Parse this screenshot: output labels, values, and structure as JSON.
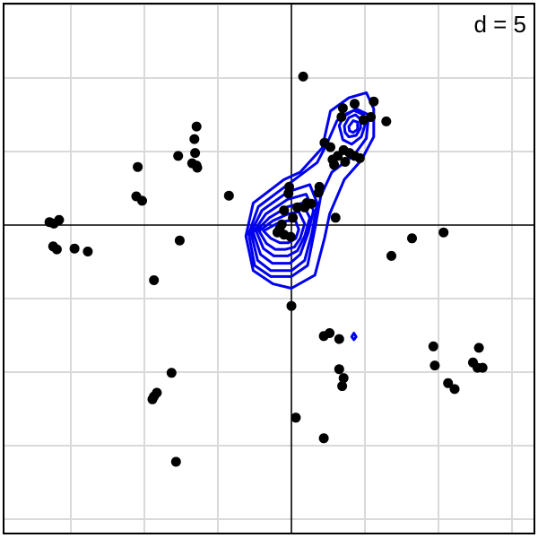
{
  "chart_data": {
    "type": "scatter",
    "title": "",
    "annotation": "d = 5",
    "xlabel": "",
    "ylabel": "",
    "xlim": [
      -4,
      3
    ],
    "ylim": [
      -4,
      3
    ],
    "grid": true,
    "grid_step": 1,
    "axes_through_origin": true,
    "legend": "none",
    "colors": {
      "points": "#000000",
      "contours": "#0000ee",
      "grid": "#d9d9d9"
    },
    "points": [
      {
        "x": 0.16,
        "y": 2.02
      },
      {
        "x": 0.86,
        "y": 1.65
      },
      {
        "x": 1.12,
        "y": 1.68
      },
      {
        "x": 0.7,
        "y": 1.59
      },
      {
        "x": 0.68,
        "y": 1.47
      },
      {
        "x": 0.98,
        "y": 1.43
      },
      {
        "x": 1.29,
        "y": 1.41
      },
      {
        "x": 1.08,
        "y": 1.47
      },
      {
        "x": 0.45,
        "y": 1.12
      },
      {
        "x": 0.53,
        "y": 1.06
      },
      {
        "x": 0.71,
        "y": 1.02
      },
      {
        "x": 0.79,
        "y": 0.98
      },
      {
        "x": 0.63,
        "y": 0.94
      },
      {
        "x": 0.86,
        "y": 0.94
      },
      {
        "x": 0.56,
        "y": 0.89
      },
      {
        "x": 0.73,
        "y": 0.86
      },
      {
        "x": 0.58,
        "y": 0.82
      },
      {
        "x": 0.93,
        "y": 0.91
      },
      {
        "x": 0.38,
        "y": 0.52
      },
      {
        "x": 0.37,
        "y": 0.44
      },
      {
        "x": -0.03,
        "y": 0.52
      },
      {
        "x": -0.04,
        "y": 0.43
      },
      {
        "x": 0.21,
        "y": 0.3
      },
      {
        "x": 0.27,
        "y": 0.29
      },
      {
        "x": 0.18,
        "y": 0.24
      },
      {
        "x": -0.1,
        "y": 0.2
      },
      {
        "x": 0.08,
        "y": 0.24
      },
      {
        "x": 0.02,
        "y": 0.1
      },
      {
        "x": -0.13,
        "y": 0.01
      },
      {
        "x": -0.16,
        "y": -0.05
      },
      {
        "x": -0.1,
        "y": -0.13
      },
      {
        "x": -0.01,
        "y": -0.16
      },
      {
        "x": -0.19,
        "y": -0.1
      },
      {
        "x": 0.6,
        "y": 0.1
      },
      {
        "x": -1.29,
        "y": 1.34
      },
      {
        "x": -1.32,
        "y": 1.17
      },
      {
        "x": -1.31,
        "y": 0.98
      },
      {
        "x": -2.09,
        "y": 0.79
      },
      {
        "x": -2.11,
        "y": 0.39
      },
      {
        "x": -2.03,
        "y": 0.33
      },
      {
        "x": -1.54,
        "y": 0.94
      },
      {
        "x": -1.35,
        "y": 0.84
      },
      {
        "x": -1.29,
        "y": 0.81
      },
      {
        "x": -1.28,
        "y": 0.78
      },
      {
        "x": -0.85,
        "y": 0.4
      },
      {
        "x": -3.29,
        "y": 0.04
      },
      {
        "x": -3.23,
        "y": 0.02
      },
      {
        "x": -3.16,
        "y": 0.07
      },
      {
        "x": -3.24,
        "y": -0.29
      },
      {
        "x": -3.19,
        "y": -0.33
      },
      {
        "x": -2.95,
        "y": -0.32
      },
      {
        "x": -2.77,
        "y": -0.36
      },
      {
        "x": -1.52,
        "y": -0.21
      },
      {
        "x": -1.87,
        "y": -0.75
      },
      {
        "x": 1.36,
        "y": -0.42
      },
      {
        "x": 1.64,
        "y": -0.18
      },
      {
        "x": 2.07,
        "y": -0.1
      },
      {
        "x": 0.0,
        "y": -1.1
      },
      {
        "x": 0.44,
        "y": -1.51
      },
      {
        "x": 0.52,
        "y": -1.47
      },
      {
        "x": 0.65,
        "y": -1.55
      },
      {
        "x": 1.93,
        "y": -1.65
      },
      {
        "x": 2.55,
        "y": -1.67
      },
      {
        "x": 1.95,
        "y": -1.91
      },
      {
        "x": 2.47,
        "y": -1.87
      },
      {
        "x": 2.6,
        "y": -1.94
      },
      {
        "x": 2.53,
        "y": -1.94
      },
      {
        "x": 0.65,
        "y": -1.96
      },
      {
        "x": 0.71,
        "y": -2.08
      },
      {
        "x": 0.69,
        "y": -2.19
      },
      {
        "x": 2.13,
        "y": -2.15
      },
      {
        "x": 2.22,
        "y": -2.23
      },
      {
        "x": -1.63,
        "y": -2.01
      },
      {
        "x": -1.87,
        "y": -2.33
      },
      {
        "x": -1.83,
        "y": -2.28
      },
      {
        "x": -1.89,
        "y": -2.37
      },
      {
        "x": 0.06,
        "y": -2.62
      },
      {
        "x": 0.44,
        "y": -2.9
      },
      {
        "x": -1.57,
        "y": -3.22
      }
    ],
    "contours": [
      [
        [
          -0.62,
          -0.15
        ],
        [
          -0.52,
          0.3
        ],
        [
          -0.1,
          0.62
        ],
        [
          0.12,
          0.72
        ],
        [
          0.42,
          1.05
        ],
        [
          0.53,
          1.55
        ],
        [
          0.78,
          1.73
        ],
        [
          1.02,
          1.8
        ],
        [
          1.12,
          1.58
        ],
        [
          1.12,
          1.2
        ],
        [
          0.95,
          0.88
        ],
        [
          0.72,
          0.62
        ],
        [
          0.52,
          0.15
        ],
        [
          0.45,
          -0.18
        ],
        [
          0.32,
          -0.68
        ],
        [
          0.0,
          -0.86
        ],
        [
          -0.25,
          -0.8
        ],
        [
          -0.52,
          -0.62
        ]
      ],
      [
        [
          -0.58,
          -0.12
        ],
        [
          -0.45,
          0.25
        ],
        [
          -0.05,
          0.55
        ],
        [
          0.35,
          0.85
        ],
        [
          0.48,
          1.1
        ],
        [
          0.62,
          1.42
        ],
        [
          0.88,
          1.58
        ],
        [
          1.05,
          1.5
        ],
        [
          1.02,
          1.18
        ],
        [
          0.85,
          0.95
        ],
        [
          0.55,
          0.72
        ],
        [
          0.4,
          0.4
        ],
        [
          0.32,
          -0.05
        ],
        [
          0.22,
          -0.55
        ],
        [
          0.0,
          -0.7
        ],
        [
          -0.28,
          -0.7
        ],
        [
          -0.5,
          -0.55
        ]
      ],
      [
        [
          -0.55,
          -0.1
        ],
        [
          -0.4,
          0.2
        ],
        [
          -0.05,
          0.45
        ],
        [
          0.25,
          0.55
        ],
        [
          0.35,
          0.3
        ],
        [
          0.28,
          -0.1
        ],
        [
          0.18,
          -0.48
        ],
        [
          0.0,
          -0.62
        ],
        [
          -0.28,
          -0.62
        ],
        [
          -0.46,
          -0.48
        ]
      ],
      [
        [
          -0.52,
          -0.1
        ],
        [
          -0.35,
          0.15
        ],
        [
          -0.05,
          0.35
        ],
        [
          0.2,
          0.42
        ],
        [
          0.3,
          0.2
        ],
        [
          0.23,
          -0.1
        ],
        [
          0.12,
          -0.4
        ],
        [
          -0.02,
          -0.52
        ],
        [
          -0.26,
          -0.52
        ],
        [
          -0.42,
          -0.4
        ]
      ],
      [
        [
          -0.48,
          -0.08
        ],
        [
          -0.3,
          0.1
        ],
        [
          -0.05,
          0.25
        ],
        [
          0.15,
          0.3
        ],
        [
          0.25,
          0.1
        ],
        [
          0.18,
          -0.15
        ],
        [
          0.08,
          -0.35
        ],
        [
          -0.05,
          -0.42
        ],
        [
          -0.24,
          -0.42
        ],
        [
          -0.38,
          -0.32
        ]
      ],
      [
        [
          -0.44,
          -0.08
        ],
        [
          -0.25,
          0.06
        ],
        [
          -0.05,
          0.15
        ],
        [
          0.1,
          0.18
        ],
        [
          0.18,
          0.02
        ],
        [
          0.12,
          -0.18
        ],
        [
          0.04,
          -0.3
        ],
        [
          -0.08,
          -0.33
        ],
        [
          -0.22,
          -0.33
        ],
        [
          -0.34,
          -0.25
        ]
      ],
      [
        [
          -0.38,
          -0.08
        ],
        [
          -0.2,
          0.02
        ],
        [
          -0.05,
          0.06
        ],
        [
          0.06,
          0.05
        ],
        [
          0.1,
          -0.06
        ],
        [
          0.06,
          -0.18
        ],
        [
          -0.04,
          -0.24
        ],
        [
          -0.16,
          -0.24
        ],
        [
          -0.28,
          -0.18
        ]
      ],
      [
        [
          0.65,
          1.35
        ],
        [
          0.72,
          1.5
        ],
        [
          0.85,
          1.56
        ],
        [
          0.98,
          1.5
        ],
        [
          1.0,
          1.36
        ],
        [
          0.95,
          1.2
        ],
        [
          0.82,
          1.1
        ],
        [
          0.7,
          1.16
        ]
      ],
      [
        [
          0.72,
          1.35
        ],
        [
          0.78,
          1.46
        ],
        [
          0.87,
          1.5
        ],
        [
          0.94,
          1.44
        ],
        [
          0.94,
          1.32
        ],
        [
          0.88,
          1.22
        ],
        [
          0.78,
          1.2
        ],
        [
          0.73,
          1.26
        ]
      ],
      [
        [
          0.78,
          1.34
        ],
        [
          0.84,
          1.42
        ],
        [
          0.9,
          1.4
        ],
        [
          0.9,
          1.3
        ],
        [
          0.84,
          1.26
        ],
        [
          0.79,
          1.28
        ]
      ],
      [
        [
          0.82,
          -1.52
        ],
        [
          0.85,
          -1.47
        ],
        [
          0.88,
          -1.52
        ],
        [
          0.85,
          -1.56
        ]
      ]
    ]
  }
}
